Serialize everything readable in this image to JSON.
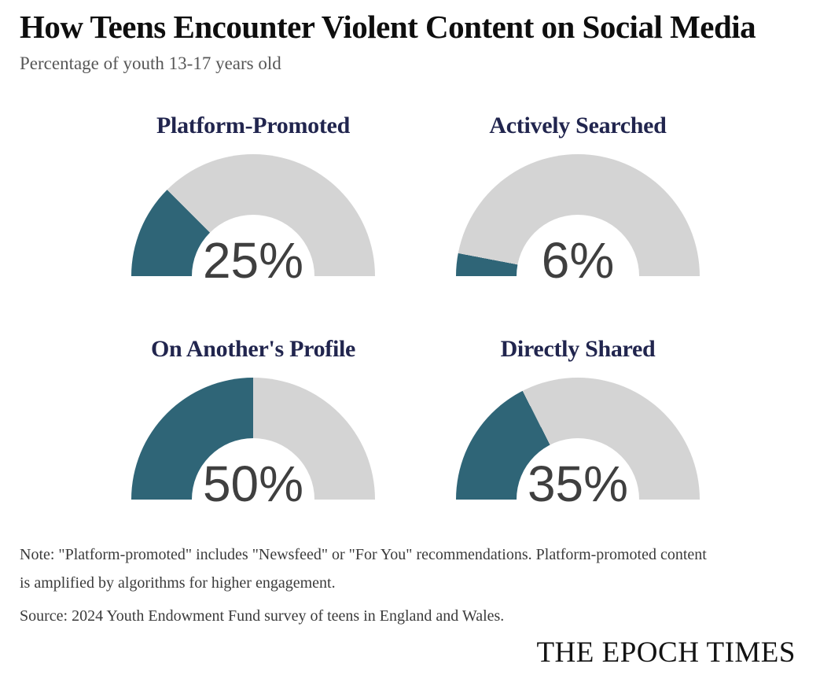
{
  "header": {
    "title": "How Teens Encounter Violent Content on Social Media",
    "subtitle": "Percentage of youth 13-17 years old"
  },
  "chart_data": {
    "type": "gauge",
    "layout": "2x2-grid of semicircular donut gauges",
    "unit": "%",
    "range": [
      0,
      100
    ],
    "title": "How Teens Encounter Violent Content on Social Media",
    "subtitle": "Percentage of youth 13-17 years old",
    "gauges": [
      {
        "label": "Platform-Promoted",
        "value": 25,
        "display": "25%"
      },
      {
        "label": "Actively Searched",
        "value": 6,
        "display": "6%"
      },
      {
        "label": "On Another's Profile",
        "value": 50,
        "display": "50%"
      },
      {
        "label": "Directly Shared",
        "value": 35,
        "display": "35%"
      }
    ],
    "colors": {
      "fill": "#2F6577",
      "track": "#D4D4D4",
      "gauge_label": "#21254E",
      "value_text": "#3F3F3F"
    }
  },
  "footer": {
    "note": "Note: \"Platform-promoted\" includes \"Newsfeed\" or \"For You\" recommendations. Platform-promoted content is amplified by algorithms for higher engagement.",
    "source": "Source: 2024 Youth Endowment Fund survey of teens in England and Wales.",
    "brand": "THE EPOCH TIMES"
  }
}
